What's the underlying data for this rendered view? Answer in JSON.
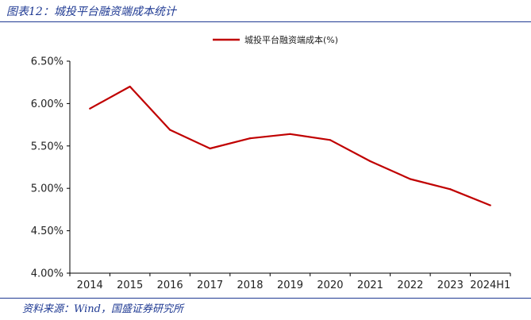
{
  "header": {
    "figure_title": "图表12：城投平台融资端成本统计"
  },
  "footer": {
    "source": "资料来源：Wind，国盛证券研究所"
  },
  "colors": {
    "accent": "#1f3a93",
    "series": "#c00000"
  },
  "chart_data": {
    "type": "line",
    "x": [
      "2014",
      "2015",
      "2016",
      "2017",
      "2018",
      "2019",
      "2020",
      "2021",
      "2022",
      "2023",
      "2024H1"
    ],
    "series": [
      {
        "name": "城投平台融资端成本(%)",
        "values": [
          5.94,
          6.2,
          5.69,
          5.47,
          5.59,
          5.64,
          5.57,
          5.32,
          5.11,
          4.99,
          4.8
        ]
      }
    ],
    "yticks": [
      "6.50%",
      "6.00%",
      "5.50%",
      "5.00%",
      "4.50%",
      "4.00%"
    ],
    "ylim": [
      4.0,
      6.5
    ],
    "legend_position": "top-center",
    "grid": false
  }
}
